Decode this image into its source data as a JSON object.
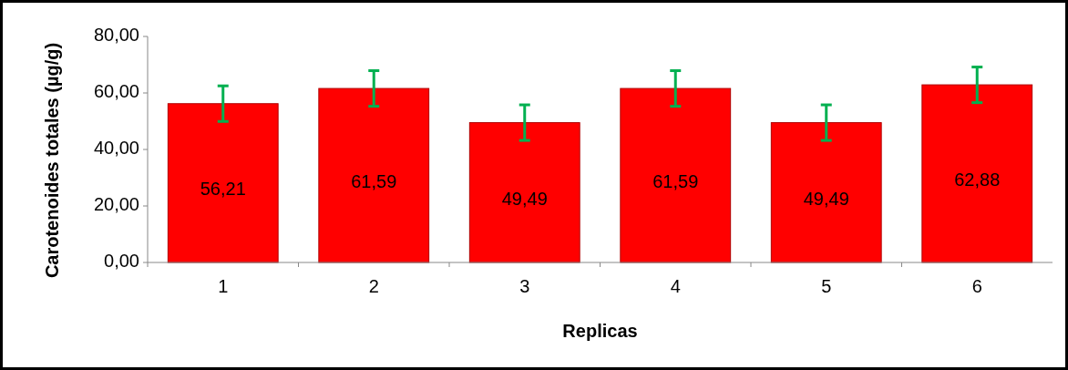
{
  "chart_data": {
    "type": "bar",
    "xlabel": "Replicas",
    "ylabel": "Carotenoides totales (µg/g)",
    "categories": [
      "1",
      "2",
      "3",
      "4",
      "5",
      "6"
    ],
    "values": [
      56.21,
      61.59,
      49.49,
      61.59,
      49.49,
      62.88
    ],
    "value_labels": [
      "56,21",
      "61,59",
      "49,49",
      "61,59",
      "49,49",
      "62,88"
    ],
    "errors": [
      6.3,
      6.3,
      6.3,
      6.3,
      6.3,
      6.3
    ],
    "color": "#ff0000",
    "ylim": [
      0,
      80
    ],
    "yticks": [
      {
        "value": 0,
        "label": "0,00"
      },
      {
        "value": 20,
        "label": "20,00"
      },
      {
        "value": 40,
        "label": "40,00"
      },
      {
        "value": 60,
        "label": "60,00"
      },
      {
        "value": 80,
        "label": "80,00"
      }
    ],
    "grid": false
  }
}
